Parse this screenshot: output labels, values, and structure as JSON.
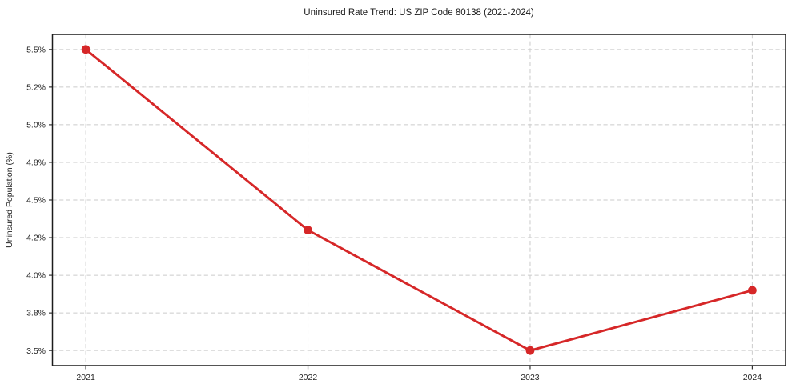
{
  "chart_data": {
    "type": "line",
    "title": "Uninsured Rate Trend: US ZIP Code 80138 (2021-2024)",
    "xlabel": "",
    "ylabel": "Uninsured Population (%)",
    "x": [
      2021,
      2022,
      2023,
      2024
    ],
    "values": [
      5.5,
      4.3,
      3.5,
      3.9
    ],
    "x_tick_labels": [
      "2021",
      "2022",
      "2023",
      "2024"
    ],
    "y_ticks": [
      {
        "value": 3.5,
        "label": "3.5%"
      },
      {
        "value": 3.75,
        "label": "3.8%"
      },
      {
        "value": 4.0,
        "label": "4.0%"
      },
      {
        "value": 4.25,
        "label": "4.2%"
      },
      {
        "value": 4.5,
        "label": "4.5%"
      },
      {
        "value": 4.75,
        "label": "4.8%"
      },
      {
        "value": 5.0,
        "label": "5.0%"
      },
      {
        "value": 5.25,
        "label": "5.2%"
      },
      {
        "value": 5.5,
        "label": "5.5%"
      }
    ],
    "xlim": [
      2020.85,
      2024.15
    ],
    "ylim": [
      3.4,
      5.6
    ],
    "grid": true,
    "grid_style": "dashed",
    "legend": false,
    "colors": {
      "line": "#d62728",
      "marker": "#d62728",
      "grid": "#cbcbcb",
      "spine": "#1c1c1c",
      "tick": "#333333",
      "background": "#ffffff"
    }
  }
}
